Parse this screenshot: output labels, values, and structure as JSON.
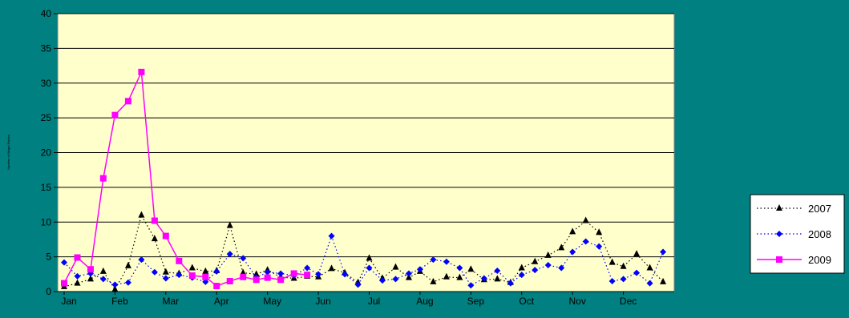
{
  "colors": {
    "background": "#008080",
    "plot_area": "#FFFFCC",
    "legend_bg": "#FFFFFF",
    "gridline": "#000000",
    "series_2007": "#000000",
    "series_2008": "#0000FF",
    "series_2009": "#FF00FF"
  },
  "chart_data": {
    "type": "line",
    "title": "",
    "xlabel": "",
    "ylabel": "Number of Illegal Entries",
    "ylim": [
      0,
      40
    ],
    "yticks": [
      0,
      5,
      10,
      15,
      20,
      25,
      30,
      35,
      40
    ],
    "xlim": [
      0,
      12
    ],
    "month_labels": [
      "Jan",
      "Feb",
      "Mar",
      "Apr",
      "May",
      "Jun",
      "Jul",
      "Aug",
      "Sep",
      "Oct",
      "Nov",
      "Dec"
    ],
    "grid": "horizontal",
    "legend_position": "right",
    "series": [
      {
        "name": "2007",
        "line_style": "dotted",
        "marker": "triangle",
        "x": [
          0.0,
          0.26,
          0.52,
          0.77,
          1.0,
          1.26,
          1.52,
          1.78,
          2.0,
          2.26,
          2.52,
          2.78,
          3.0,
          3.26,
          3.52,
          3.78,
          4.0,
          4.26,
          4.52,
          4.78,
          5.0,
          5.26,
          5.52,
          5.78,
          6.0,
          6.26,
          6.52,
          6.78,
          7.0,
          7.26,
          7.52,
          7.78,
          8.0,
          8.26,
          8.52,
          8.78,
          9.0,
          9.26,
          9.52,
          9.78,
          10.0,
          10.26,
          10.52,
          10.78,
          11.0,
          11.26,
          11.52,
          11.78
        ],
        "values": [
          0.7,
          1.2,
          1.8,
          2.9,
          0.3,
          3.7,
          11.0,
          7.6,
          2.8,
          2.6,
          3.4,
          2.9,
          3.0,
          9.5,
          2.7,
          2.5,
          3.1,
          2.1,
          1.9,
          2.2,
          2.1,
          3.3,
          2.7,
          1.3,
          4.8,
          1.9,
          3.5,
          2.0,
          2.9,
          1.4,
          2.1,
          2.0,
          3.2,
          1.7,
          1.8,
          1.3,
          3.4,
          4.3,
          5.2,
          6.3,
          8.6,
          10.2,
          8.5,
          4.2,
          3.6,
          5.4,
          3.4,
          1.4
        ]
      },
      {
        "name": "2008",
        "line_style": "dotted",
        "marker": "diamond",
        "x": [
          0.0,
          0.26,
          0.52,
          0.77,
          1.0,
          1.26,
          1.52,
          1.78,
          2.0,
          2.26,
          2.52,
          2.78,
          3.0,
          3.26,
          3.52,
          3.78,
          4.0,
          4.26,
          4.52,
          4.78,
          5.0,
          5.26,
          5.52,
          5.78,
          6.0,
          6.26,
          6.52,
          6.78,
          7.0,
          7.26,
          7.52,
          7.78,
          8.0,
          8.26,
          8.52,
          8.78,
          9.0,
          9.26,
          9.52,
          9.78,
          10.0,
          10.26,
          10.52,
          10.78,
          11.0,
          11.26,
          11.52,
          11.78
        ],
        "values": [
          4.2,
          2.2,
          2.6,
          1.8,
          1.0,
          1.3,
          4.6,
          2.8,
          1.9,
          2.4,
          2.0,
          1.4,
          2.9,
          5.4,
          4.8,
          2.0,
          2.8,
          2.6,
          2.3,
          3.4,
          2.5,
          8.0,
          2.5,
          1.0,
          3.4,
          1.6,
          1.8,
          2.6,
          3.2,
          4.6,
          4.3,
          3.4,
          0.9,
          1.9,
          3.0,
          1.2,
          2.4,
          3.1,
          3.8,
          3.4,
          5.7,
          7.2,
          6.5,
          1.5,
          1.8,
          2.7,
          1.2,
          5.7
        ]
      },
      {
        "name": "2009",
        "line_style": "solid",
        "marker": "square",
        "x": [
          0.0,
          0.26,
          0.52,
          0.77,
          1.0,
          1.26,
          1.52,
          1.78,
          2.0,
          2.26,
          2.52,
          2.78,
          3.0,
          3.26,
          3.52,
          3.78,
          4.0,
          4.26,
          4.52,
          4.78
        ],
        "values": [
          1.2,
          4.9,
          3.2,
          16.3,
          25.4,
          27.4,
          31.6,
          10.2,
          8.0,
          4.4,
          2.3,
          2.1,
          0.8,
          1.5,
          2.1,
          1.7,
          2.0,
          1.7,
          2.6,
          2.4
        ]
      }
    ]
  }
}
